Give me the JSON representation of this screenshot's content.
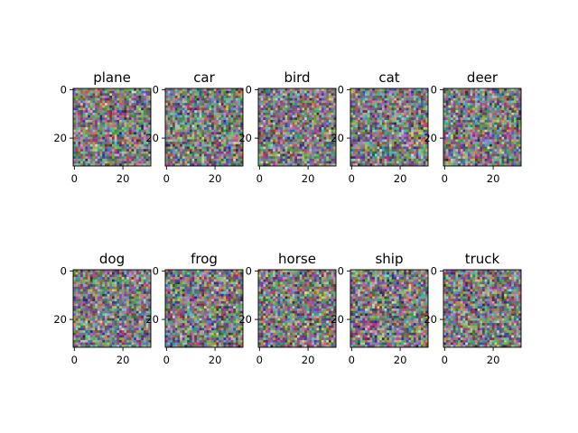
{
  "chart_data": {
    "type": "heatmap",
    "description_kind": "grid of image panels (random RGB noise)",
    "grid": {
      "rows": 2,
      "cols": 5
    },
    "image_size": [
      32,
      32
    ],
    "axes": {
      "x_ticks": [
        0,
        20
      ],
      "y_ticks": [
        0,
        20
      ],
      "xlim": [
        -0.5,
        31.5
      ],
      "ylim": [
        31.5,
        -0.5
      ],
      "grid": false
    },
    "panels": [
      {
        "title": "plane"
      },
      {
        "title": "car"
      },
      {
        "title": "bird"
      },
      {
        "title": "cat"
      },
      {
        "title": "deer"
      },
      {
        "title": "dog"
      },
      {
        "title": "frog"
      },
      {
        "title": "horse"
      },
      {
        "title": "ship"
      },
      {
        "title": "truck"
      }
    ]
  }
}
